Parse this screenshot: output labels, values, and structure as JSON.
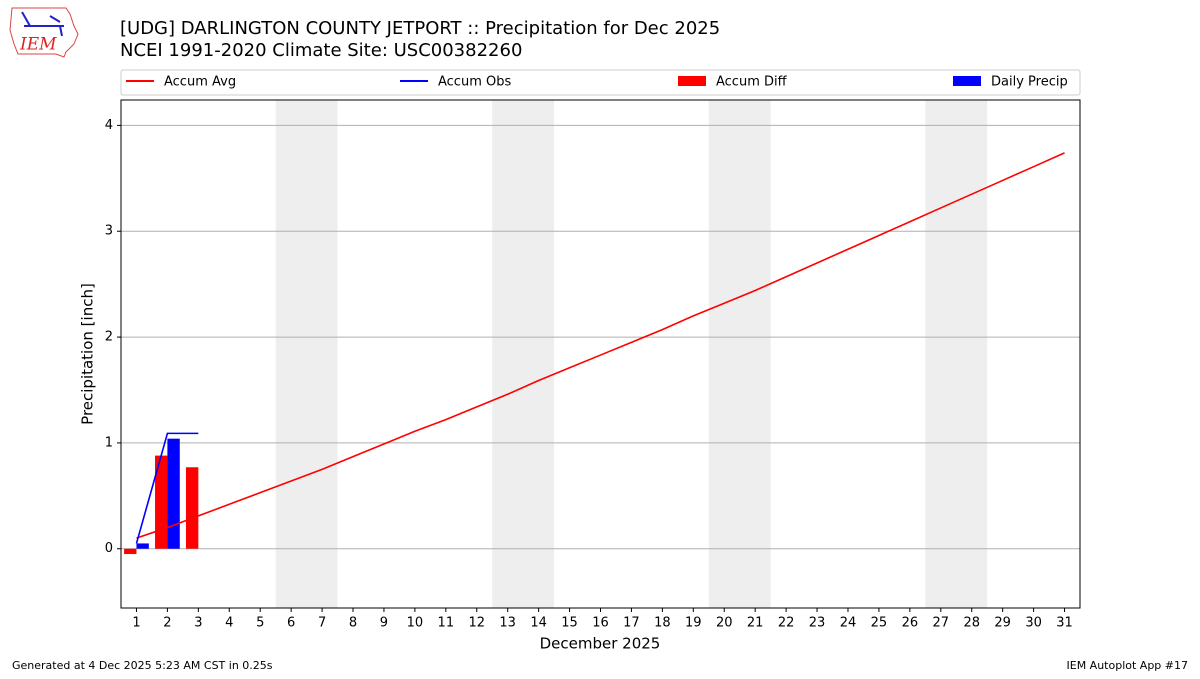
{
  "chart_data": {
    "type": "combo",
    "title": "[UDG] DARLINGTON COUNTY JETPORT :: Precipitation for Dec 2025",
    "subtitle": "NCEI 1991-2020 Climate Site: USC00382260",
    "logo_text": "IEM",
    "xlabel": "December 2025",
    "ylabel": "Precipitation [inch]",
    "footer_left": "Generated at 4 Dec 2025 5:23 AM CST in 0.25s",
    "footer_right": "IEM Autoplot App #17",
    "x": [
      1,
      2,
      3,
      4,
      5,
      6,
      7,
      8,
      9,
      10,
      11,
      12,
      13,
      14,
      15,
      16,
      17,
      18,
      19,
      20,
      21,
      22,
      23,
      24,
      25,
      26,
      27,
      28,
      29,
      30,
      31
    ],
    "xlim": [
      0.5,
      31.5
    ],
    "xticks": [
      1,
      2,
      3,
      4,
      5,
      6,
      7,
      8,
      9,
      10,
      11,
      12,
      13,
      14,
      15,
      16,
      17,
      18,
      19,
      20,
      21,
      22,
      23,
      24,
      25,
      26,
      27,
      28,
      29,
      30,
      31
    ],
    "ylim": [
      -0.56,
      4.24
    ],
    "yticks": [
      0,
      1,
      2,
      3,
      4
    ],
    "grid": true,
    "shaded_spans": [
      [
        5.5,
        7.5
      ],
      [
        12.5,
        14.5
      ],
      [
        19.5,
        21.5
      ],
      [
        26.5,
        28.5
      ]
    ],
    "shade_color": "#eeeeee",
    "series": [
      {
        "name": "Accum Avg",
        "type": "line",
        "color": "#ff0000",
        "values": [
          0.1,
          0.2,
          0.31,
          0.42,
          0.53,
          0.64,
          0.75,
          0.87,
          0.99,
          1.11,
          1.22,
          1.34,
          1.46,
          1.59,
          1.71,
          1.83,
          1.95,
          2.07,
          2.2,
          2.32,
          2.44,
          2.57,
          2.7,
          2.83,
          2.96,
          3.09,
          3.22,
          3.35,
          3.48,
          3.61,
          3.74
        ]
      },
      {
        "name": "Accum Obs",
        "type": "line",
        "color": "#0000ff",
        "values": [
          0.05,
          1.09,
          1.09,
          null,
          null,
          null,
          null,
          null,
          null,
          null,
          null,
          null,
          null,
          null,
          null,
          null,
          null,
          null,
          null,
          null,
          null,
          null,
          null,
          null,
          null,
          null,
          null,
          null,
          null,
          null,
          null
        ]
      },
      {
        "name": "Accum Diff",
        "type": "bar",
        "color": "#ff0000",
        "values": [
          -0.05,
          0.88,
          0.77,
          null,
          null,
          null,
          null,
          null,
          null,
          null,
          null,
          null,
          null,
          null,
          null,
          null,
          null,
          null,
          null,
          null,
          null,
          null,
          null,
          null,
          null,
          null,
          null,
          null,
          null,
          null,
          null
        ]
      },
      {
        "name": "Daily Precip",
        "type": "bar",
        "color": "#0000ff",
        "values": [
          0.05,
          1.04,
          0.0,
          null,
          null,
          null,
          null,
          null,
          null,
          null,
          null,
          null,
          null,
          null,
          null,
          null,
          null,
          null,
          null,
          null,
          null,
          null,
          null,
          null,
          null,
          null,
          null,
          null,
          null,
          null,
          null
        ]
      }
    ]
  }
}
